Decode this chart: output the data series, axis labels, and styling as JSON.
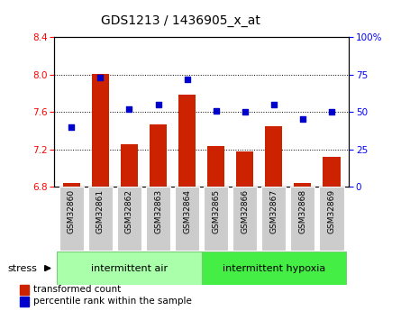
{
  "title": "GDS1213 / 1436905_x_at",
  "categories": [
    "GSM32860",
    "GSM32861",
    "GSM32862",
    "GSM32863",
    "GSM32864",
    "GSM32865",
    "GSM32866",
    "GSM32867",
    "GSM32868",
    "GSM32869"
  ],
  "bar_values": [
    6.84,
    8.01,
    7.25,
    7.47,
    7.79,
    7.23,
    7.18,
    7.45,
    6.84,
    7.12
  ],
  "scatter_values": [
    40,
    73,
    52,
    55,
    72,
    51,
    50,
    55,
    45,
    50
  ],
  "bar_color": "#cc2200",
  "scatter_color": "#0000cc",
  "ymin": 6.8,
  "ymax": 8.4,
  "y2min": 0,
  "y2max": 100,
  "yticks": [
    6.8,
    7.2,
    7.6,
    8.0,
    8.4
  ],
  "y2ticks": [
    0,
    25,
    50,
    75,
    100
  ],
  "group1_label": "intermittent air",
  "group2_label": "intermittent hypoxia",
  "stress_label": "stress",
  "legend1": "transformed count",
  "legend2": "percentile rank within the sample",
  "bar_bottom": 6.8,
  "group1_color": "#aaffaa",
  "group2_color": "#44ee44",
  "tick_label_bg": "#cccccc"
}
